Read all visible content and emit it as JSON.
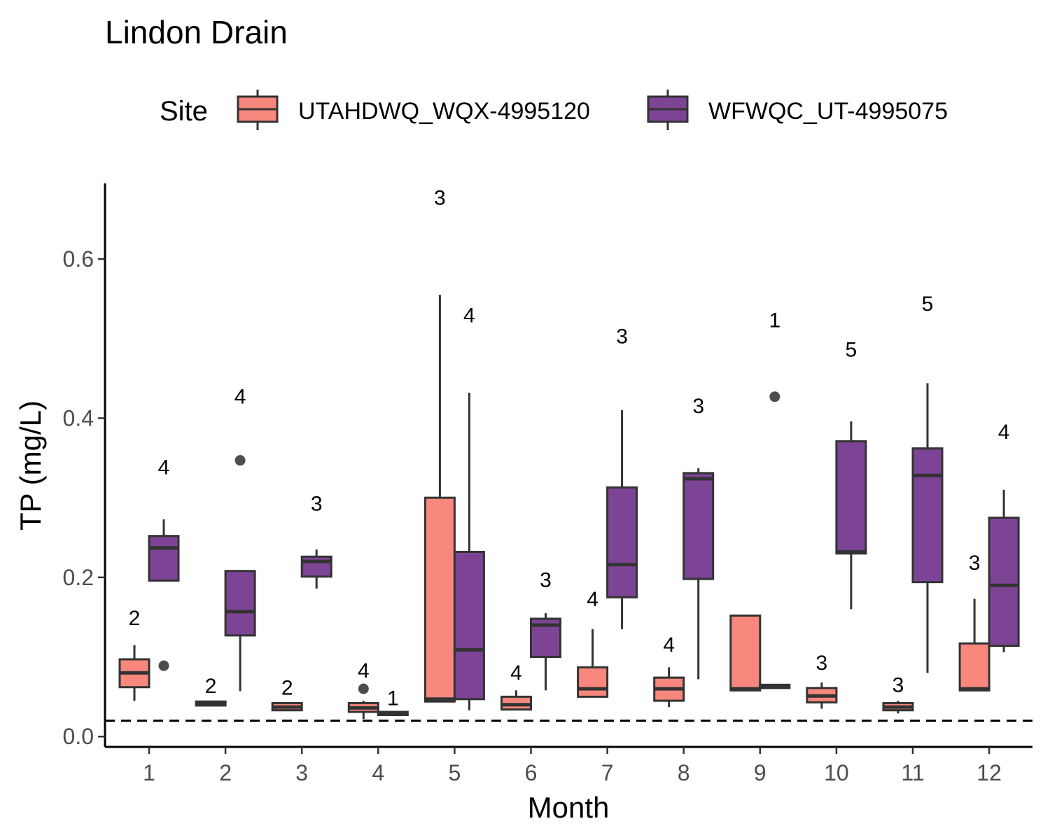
{
  "chart_data": {
    "type": "boxplot",
    "title": "Lindon Drain",
    "xlabel": "Month",
    "ylabel": "TP (mg/L)",
    "ylim": [
      -0.013,
      0.695
    ],
    "yticks": [
      0.0,
      0.2,
      0.4,
      0.6
    ],
    "ytick_labels": [
      "0.0",
      "0.2",
      "0.4",
      "0.6"
    ],
    "categories": [
      "1",
      "2",
      "3",
      "4",
      "5",
      "6",
      "7",
      "8",
      "9",
      "10",
      "11",
      "12"
    ],
    "reference_line": {
      "y": 0.02,
      "style": "dashed"
    },
    "legend": {
      "title": "Site",
      "position": "top"
    },
    "series": [
      {
        "name": "UTAHDWQ_WQX-4995120",
        "color": "#F8877D",
        "boxes": [
          {
            "month": "1",
            "q1": 0.062,
            "median": 0.08,
            "q3": 0.097,
            "low": 0.045,
            "high": 0.115,
            "count": "2",
            "outliers": []
          },
          {
            "month": "2",
            "q1": 0.039,
            "median": 0.041,
            "q3": 0.044,
            "low": 0.039,
            "high": 0.044,
            "count": "2",
            "outliers": []
          },
          {
            "month": "3",
            "q1": 0.033,
            "median": 0.037,
            "q3": 0.042,
            "low": 0.033,
            "high": 0.042,
            "count": "2",
            "outliers": []
          },
          {
            "month": "4",
            "q1": 0.031,
            "median": 0.036,
            "q3": 0.042,
            "low": 0.022,
            "high": 0.045,
            "count": "4",
            "outliers": [
              0.06
            ]
          },
          {
            "month": "5",
            "q1": 0.044,
            "median": 0.047,
            "q3": 0.3,
            "low": 0.044,
            "high": 0.555,
            "count": "3",
            "outliers": []
          },
          {
            "month": "6",
            "q1": 0.034,
            "median": 0.04,
            "q3": 0.05,
            "low": 0.034,
            "high": 0.058,
            "count": "4",
            "outliers": []
          },
          {
            "month": "7",
            "q1": 0.05,
            "median": 0.06,
            "q3": 0.087,
            "low": 0.05,
            "high": 0.135,
            "count": "4",
            "outliers": []
          },
          {
            "month": "8",
            "q1": 0.045,
            "median": 0.06,
            "q3": 0.074,
            "low": 0.037,
            "high": 0.087,
            "count": "4",
            "outliers": []
          },
          {
            "month": "9",
            "q1": 0.058,
            "median": 0.06,
            "q3": 0.152,
            "low": 0.058,
            "high": 0.152,
            "count": "",
            "outliers": []
          },
          {
            "month": "10",
            "q1": 0.043,
            "median": 0.051,
            "q3": 0.061,
            "low": 0.035,
            "high": 0.068,
            "count": "3",
            "outliers": []
          },
          {
            "month": "11",
            "q1": 0.033,
            "median": 0.037,
            "q3": 0.042,
            "low": 0.029,
            "high": 0.045,
            "count": "3",
            "outliers": []
          },
          {
            "month": "12",
            "q1": 0.058,
            "median": 0.06,
            "q3": 0.117,
            "low": 0.058,
            "high": 0.173,
            "count": "3",
            "outliers": []
          }
        ]
      },
      {
        "name": "WFWQC_UT-4995075",
        "color": "#7D4495",
        "boxes": [
          {
            "month": "1",
            "q1": 0.196,
            "median": 0.237,
            "q3": 0.252,
            "low": 0.196,
            "high": 0.273,
            "count": "4",
            "outliers": [
              0.089
            ]
          },
          {
            "month": "2",
            "q1": 0.127,
            "median": 0.157,
            "q3": 0.208,
            "low": 0.057,
            "high": 0.208,
            "count": "4",
            "outliers": [
              0.347
            ]
          },
          {
            "month": "3",
            "q1": 0.201,
            "median": 0.22,
            "q3": 0.226,
            "low": 0.186,
            "high": 0.235,
            "count": "3",
            "outliers": []
          },
          {
            "month": "4",
            "q1": 0.027,
            "median": 0.029,
            "q3": 0.031,
            "low": 0.027,
            "high": 0.031,
            "count": "1",
            "outliers": []
          },
          {
            "month": "5",
            "q1": 0.047,
            "median": 0.109,
            "q3": 0.232,
            "low": 0.033,
            "high": 0.432,
            "count": "4",
            "outliers": []
          },
          {
            "month": "6",
            "q1": 0.1,
            "median": 0.14,
            "q3": 0.148,
            "low": 0.058,
            "high": 0.155,
            "count": "3",
            "outliers": []
          },
          {
            "month": "7",
            "q1": 0.175,
            "median": 0.216,
            "q3": 0.313,
            "low": 0.135,
            "high": 0.41,
            "count": "3",
            "outliers": []
          },
          {
            "month": "8",
            "q1": 0.198,
            "median": 0.324,
            "q3": 0.331,
            "low": 0.072,
            "high": 0.337,
            "count": "3",
            "outliers": []
          },
          {
            "month": "9",
            "q1": 0.061,
            "median": 0.063,
            "q3": 0.065,
            "low": 0.061,
            "high": 0.065,
            "count": "1",
            "outliers": [
              0.427
            ]
          },
          {
            "month": "10",
            "q1": 0.23,
            "median": 0.232,
            "q3": 0.371,
            "low": 0.16,
            "high": 0.396,
            "count": "5",
            "outliers": []
          },
          {
            "month": "11",
            "q1": 0.194,
            "median": 0.328,
            "q3": 0.362,
            "low": 0.08,
            "high": 0.444,
            "count": "5",
            "outliers": []
          },
          {
            "month": "12",
            "q1": 0.114,
            "median": 0.19,
            "q3": 0.275,
            "low": 0.106,
            "high": 0.31,
            "count": "4",
            "outliers": []
          }
        ]
      }
    ]
  }
}
